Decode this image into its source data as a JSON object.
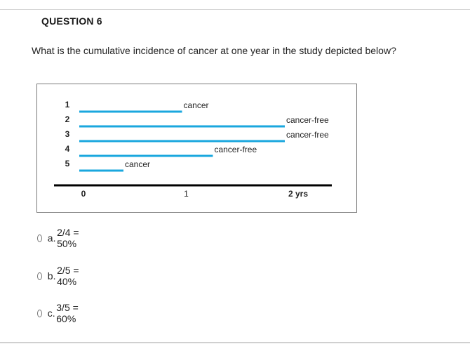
{
  "question": {
    "title": "QUESTION 6",
    "text": "What is the cumulative incidence of cancer at one year in the study depicted below?"
  },
  "figure": {
    "colors": {
      "line": "#1aa7de",
      "axis": "#000000",
      "text": "#222222"
    },
    "subjects": [
      {
        "number": "1",
        "end": 1.0,
        "label": "cancer"
      },
      {
        "number": "2",
        "end": 2.0,
        "label": "cancer-free"
      },
      {
        "number": "3",
        "end": 2.0,
        "label": "cancer-free"
      },
      {
        "number": "4",
        "end": 1.3,
        "label": "cancer-free"
      },
      {
        "number": "5",
        "end": 0.43,
        "label": "cancer"
      }
    ],
    "axis": {
      "ticks": [
        {
          "value": 0,
          "label": "0"
        },
        {
          "value": 1,
          "label": "1"
        },
        {
          "value": 2,
          "label": "2 yrs"
        }
      ]
    }
  },
  "options": [
    {
      "letter": "a.",
      "text": "2/4 = 50%"
    },
    {
      "letter": "b.",
      "text": "2/5 = 40%"
    },
    {
      "letter": "c.",
      "text": "3/5 = 60%"
    }
  ]
}
